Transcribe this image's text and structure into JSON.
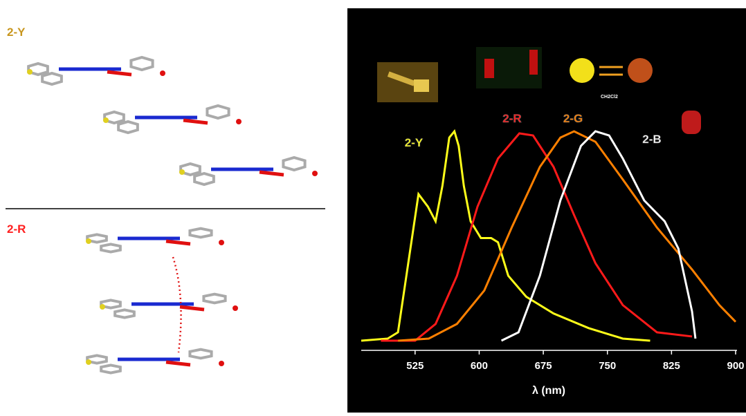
{
  "structures": {
    "labels": [
      "2-Y",
      "2-R"
    ],
    "inset_text": "CH2Cl2"
  },
  "chart_data": {
    "type": "line",
    "xlabel": "λ (nm)",
    "xlim": [
      462,
      900
    ],
    "ylim": [
      0,
      1
    ],
    "xticks": [
      525,
      600,
      675,
      750,
      825,
      900
    ],
    "series": [
      {
        "name": "2-Y",
        "color": "#ffff1a",
        "x": [
          462,
          493,
          505,
          517,
          529,
          540,
          549,
          557,
          565,
          571,
          576,
          582,
          590,
          602,
          614,
          622,
          634,
          655,
          687,
          728,
          768,
          800
        ],
        "values": [
          0,
          0.01,
          0.04,
          0.37,
          0.7,
          0.64,
          0.57,
          0.74,
          0.97,
          1.0,
          0.93,
          0.74,
          0.57,
          0.49,
          0.49,
          0.47,
          0.31,
          0.21,
          0.13,
          0.06,
          0.01,
          0
        ]
      },
      {
        "name": "2-R",
        "color": "#ff1a1a",
        "x": [
          485,
          525,
          549,
          574,
          598,
          622,
          647,
          663,
          687,
          711,
          736,
          768,
          808,
          849
        ],
        "values": [
          0,
          0,
          0.08,
          0.31,
          0.64,
          0.87,
          0.99,
          0.98,
          0.83,
          0.6,
          0.37,
          0.17,
          0.04,
          0.02
        ]
      },
      {
        "name": "2-G",
        "color": "#ff8000",
        "x": [
          505,
          541,
          574,
          606,
          638,
          671,
          695,
          711,
          736,
          768,
          808,
          849,
          881,
          900
        ],
        "values": [
          0,
          0.01,
          0.08,
          0.24,
          0.54,
          0.83,
          0.97,
          1.0,
          0.95,
          0.77,
          0.54,
          0.34,
          0.17,
          0.09
        ]
      },
      {
        "name": "2-B",
        "color": "#ffffff",
        "x": [
          626,
          646,
          671,
          695,
          719,
          736,
          752,
          768,
          793,
          817,
          833,
          849,
          853
        ],
        "values": [
          0,
          0.04,
          0.31,
          0.67,
          0.93,
          1.0,
          0.98,
          0.87,
          0.67,
          0.57,
          0.44,
          0.14,
          0.01
        ]
      }
    ]
  }
}
